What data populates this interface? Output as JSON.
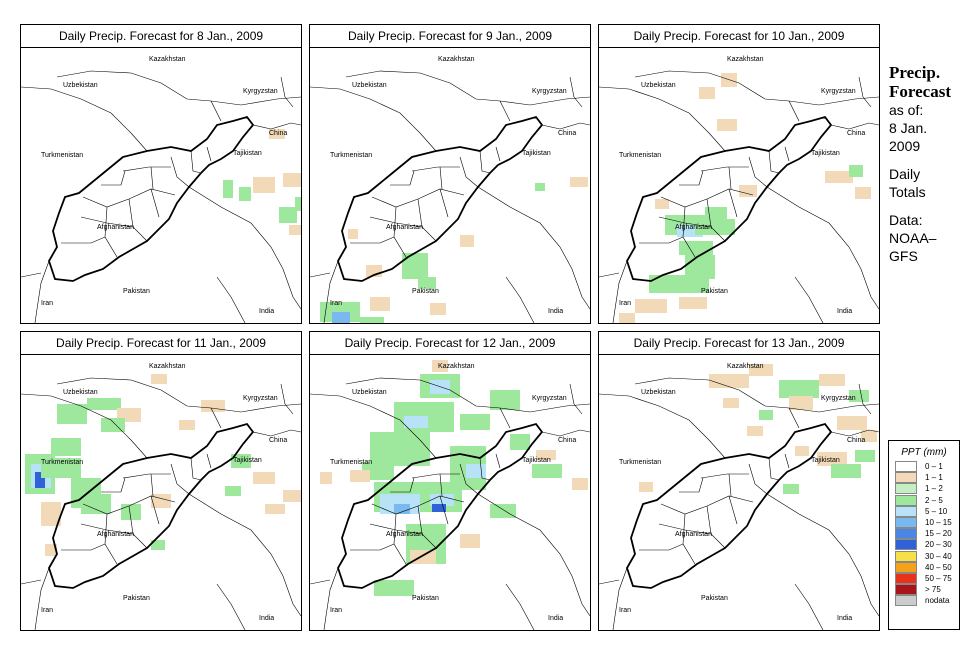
{
  "panels": [
    {
      "title": "Daily Precip. Forecast for  8 Jan., 2009",
      "cells": [
        [
          202,
          133,
          10,
          18,
          "#9ee89e"
        ],
        [
          218,
          140,
          12,
          14,
          "#9ee89e"
        ],
        [
          232,
          130,
          22,
          16,
          "#f2d9b8"
        ],
        [
          262,
          126,
          24,
          14,
          "#f2d9b8"
        ],
        [
          258,
          160,
          18,
          16,
          "#9ee89e"
        ],
        [
          274,
          150,
          14,
          14,
          "#9ee89e"
        ],
        [
          268,
          178,
          14,
          10,
          "#f2d9b8"
        ],
        [
          248,
          82,
          16,
          10,
          "#f2d9b8"
        ]
      ]
    },
    {
      "title": "Daily Precip. Forecast for  9 Jan., 2009",
      "cells": [
        [
          10,
          255,
          40,
          20,
          "#9ee89e"
        ],
        [
          22,
          265,
          18,
          16,
          "#7ab8f0"
        ],
        [
          4,
          280,
          36,
          14,
          "#b8e2f8"
        ],
        [
          50,
          270,
          24,
          16,
          "#9ee89e"
        ],
        [
          60,
          250,
          20,
          14,
          "#f2d9b8"
        ],
        [
          92,
          206,
          26,
          26,
          "#9ee89e"
        ],
        [
          108,
          230,
          18,
          12,
          "#9ee89e"
        ],
        [
          120,
          256,
          16,
          12,
          "#f2d9b8"
        ],
        [
          56,
          218,
          16,
          12,
          "#f2d9b8"
        ],
        [
          150,
          188,
          14,
          12,
          "#f2d9b8"
        ],
        [
          225,
          136,
          10,
          8,
          "#9ee89e"
        ],
        [
          260,
          130,
          18,
          10,
          "#f2d9b8"
        ],
        [
          38,
          182,
          10,
          10,
          "#f2d9b8"
        ]
      ]
    },
    {
      "title": "Daily Precip. Forecast for  10 Jan., 2009",
      "cells": [
        [
          66,
          168,
          40,
          20,
          "#9ee89e"
        ],
        [
          78,
          178,
          26,
          12,
          "#b8e2f8"
        ],
        [
          96,
          172,
          40,
          16,
          "#9ee89e"
        ],
        [
          106,
          160,
          22,
          12,
          "#9ee89e"
        ],
        [
          80,
          194,
          34,
          14,
          "#9ee89e"
        ],
        [
          86,
          208,
          30,
          24,
          "#9ee89e"
        ],
        [
          50,
          228,
          60,
          18,
          "#9ee89e"
        ],
        [
          36,
          252,
          32,
          14,
          "#f2d9b8"
        ],
        [
          20,
          266,
          16,
          14,
          "#f2d9b8"
        ],
        [
          80,
          250,
          28,
          12,
          "#f2d9b8"
        ],
        [
          118,
          72,
          20,
          12,
          "#f2d9b8"
        ],
        [
          122,
          26,
          16,
          14,
          "#f2d9b8"
        ],
        [
          100,
          40,
          16,
          12,
          "#f2d9b8"
        ],
        [
          140,
          138,
          18,
          12,
          "#f2d9b8"
        ],
        [
          226,
          124,
          28,
          12,
          "#f2d9b8"
        ],
        [
          250,
          118,
          14,
          12,
          "#9ee89e"
        ],
        [
          256,
          140,
          16,
          12,
          "#f2d9b8"
        ],
        [
          56,
          152,
          14,
          10,
          "#f2d9b8"
        ]
      ]
    },
    {
      "title": "Daily Precip. Forecast for  11 Jan., 2009",
      "cells": [
        [
          4,
          100,
          30,
          40,
          "#9ee89e"
        ],
        [
          10,
          110,
          20,
          24,
          "#b8e2f8"
        ],
        [
          14,
          118,
          10,
          16,
          "#2e62d6"
        ],
        [
          20,
          104,
          40,
          20,
          "#9ee89e"
        ],
        [
          30,
          84,
          30,
          18,
          "#9ee89e"
        ],
        [
          50,
          124,
          30,
          30,
          "#9ee89e"
        ],
        [
          60,
          140,
          30,
          20,
          "#9ee89e"
        ],
        [
          36,
          50,
          30,
          20,
          "#9ee89e"
        ],
        [
          66,
          44,
          34,
          12,
          "#9ee89e"
        ],
        [
          96,
          54,
          24,
          14,
          "#f2d9b8"
        ],
        [
          80,
          64,
          24,
          14,
          "#9ee89e"
        ],
        [
          100,
          150,
          20,
          16,
          "#9ee89e"
        ],
        [
          20,
          148,
          20,
          24,
          "#f2d9b8"
        ],
        [
          130,
          140,
          20,
          14,
          "#f2d9b8"
        ],
        [
          180,
          46,
          24,
          12,
          "#f2d9b8"
        ],
        [
          210,
          100,
          20,
          14,
          "#9ee89e"
        ],
        [
          232,
          118,
          22,
          12,
          "#f2d9b8"
        ],
        [
          262,
          136,
          18,
          12,
          "#f2d9b8"
        ],
        [
          204,
          132,
          16,
          10,
          "#9ee89e"
        ],
        [
          244,
          150,
          20,
          10,
          "#f2d9b8"
        ],
        [
          130,
          20,
          16,
          10,
          "#f2d9b8"
        ],
        [
          130,
          186,
          14,
          10,
          "#9ee89e"
        ],
        [
          158,
          66,
          16,
          10,
          "#f2d9b8"
        ],
        [
          24,
          190,
          12,
          12,
          "#f2d9b8"
        ]
      ]
    },
    {
      "title": "Daily Precip. Forecast for  12 Jan., 2009",
      "cells": [
        [
          110,
          20,
          40,
          24,
          "#9ee89e"
        ],
        [
          120,
          26,
          20,
          14,
          "#b8e2f8"
        ],
        [
          84,
          48,
          60,
          30,
          "#9ee89e"
        ],
        [
          94,
          62,
          24,
          12,
          "#b8e2f8"
        ],
        [
          60,
          78,
          60,
          34,
          "#9ee89e"
        ],
        [
          52,
          108,
          32,
          18,
          "#9ee89e"
        ],
        [
          64,
          128,
          50,
          30,
          "#9ee89e"
        ],
        [
          70,
          140,
          40,
          20,
          "#b8e2f8"
        ],
        [
          84,
          150,
          16,
          10,
          "#7ab8f0"
        ],
        [
          112,
          128,
          40,
          30,
          "#9ee89e"
        ],
        [
          120,
          140,
          24,
          12,
          "#b8e2f8"
        ],
        [
          122,
          150,
          14,
          8,
          "#2e62d6"
        ],
        [
          140,
          92,
          36,
          44,
          "#9ee89e"
        ],
        [
          156,
          110,
          20,
          14,
          "#b8e2f8"
        ],
        [
          96,
          170,
          40,
          40,
          "#9ee89e"
        ],
        [
          100,
          196,
          26,
          14,
          "#f2d9b8"
        ],
        [
          64,
          226,
          40,
          16,
          "#9ee89e"
        ],
        [
          150,
          60,
          30,
          16,
          "#9ee89e"
        ],
        [
          180,
          36,
          30,
          20,
          "#9ee89e"
        ],
        [
          200,
          80,
          20,
          16,
          "#9ee89e"
        ],
        [
          222,
          110,
          30,
          14,
          "#9ee89e"
        ],
        [
          226,
          96,
          20,
          10,
          "#f2d9b8"
        ],
        [
          262,
          124,
          16,
          12,
          "#f2d9b8"
        ],
        [
          180,
          150,
          26,
          14,
          "#9ee89e"
        ],
        [
          40,
          116,
          20,
          12,
          "#f2d9b8"
        ],
        [
          10,
          118,
          12,
          12,
          "#f2d9b8"
        ],
        [
          150,
          180,
          20,
          14,
          "#f2d9b8"
        ],
        [
          122,
          6,
          16,
          12,
          "#f2d9b8"
        ]
      ]
    },
    {
      "title": "Daily Precip. Forecast for  13 Jan., 2009",
      "cells": [
        [
          110,
          20,
          40,
          14,
          "#f2d9b8"
        ],
        [
          150,
          10,
          24,
          12,
          "#f2d9b8"
        ],
        [
          180,
          26,
          40,
          18,
          "#9ee89e"
        ],
        [
          190,
          42,
          24,
          14,
          "#f2d9b8"
        ],
        [
          220,
          20,
          26,
          12,
          "#f2d9b8"
        ],
        [
          250,
          36,
          20,
          12,
          "#9ee89e"
        ],
        [
          238,
          62,
          30,
          14,
          "#f2d9b8"
        ],
        [
          218,
          98,
          30,
          14,
          "#f2d9b8"
        ],
        [
          232,
          110,
          30,
          14,
          "#9ee89e"
        ],
        [
          256,
          96,
          20,
          12,
          "#9ee89e"
        ],
        [
          262,
          76,
          16,
          12,
          "#f2d9b8"
        ],
        [
          196,
          92,
          14,
          10,
          "#f2d9b8"
        ],
        [
          184,
          130,
          16,
          10,
          "#9ee89e"
        ],
        [
          40,
          128,
          14,
          10,
          "#f2d9b8"
        ],
        [
          148,
          72,
          16,
          10,
          "#f2d9b8"
        ],
        [
          124,
          44,
          16,
          10,
          "#f2d9b8"
        ],
        [
          160,
          56,
          14,
          10,
          "#9ee89e"
        ]
      ]
    }
  ],
  "map_labels": {
    "uzbekistan": "Uzbekistan",
    "kazakhstan": "Kazakhstan",
    "kyrgyzstan": "Kyrgyzstan",
    "china": "China",
    "turkmenistan": "Turkmenistan",
    "tajikistan": "Tajikistan",
    "afghanistan": "Afghanistan",
    "pakistan": "Pakistan",
    "iran": "Iran",
    "india": "India"
  },
  "side": {
    "title1": "Precip.",
    "title2": "Forecast",
    "asof": "as of:",
    "date1": "8 Jan.",
    "date2": "2009",
    "totals1": "Daily",
    "totals2": "Totals",
    "data1": "Data:",
    "data2": "NOAA–",
    "data3": "GFS"
  },
  "legend": {
    "title": "PPT (mm)",
    "items": [
      {
        "label": "0 – 1",
        "color": "#ffffff"
      },
      {
        "label": "1 – 1",
        "color": "#f2d9b8"
      },
      {
        "label": "1 – 2",
        "color": "#c4eec4"
      },
      {
        "label": "2 – 5",
        "color": "#9ee89e"
      },
      {
        "label": "5 – 10",
        "color": "#b8e2f8"
      },
      {
        "label": "10 – 15",
        "color": "#7ab8f0"
      },
      {
        "label": "15 – 20",
        "color": "#4a86e4"
      },
      {
        "label": "20 – 30",
        "color": "#2e62d6"
      },
      {
        "label": "30 – 40",
        "color": "#f6e04a"
      },
      {
        "label": "40 – 50",
        "color": "#f4a21a"
      },
      {
        "label": "50 – 75",
        "color": "#e8321a"
      },
      {
        "label": "> 75",
        "color": "#a8141a"
      },
      {
        "label": "nodata",
        "color": "#cccccc"
      }
    ]
  }
}
